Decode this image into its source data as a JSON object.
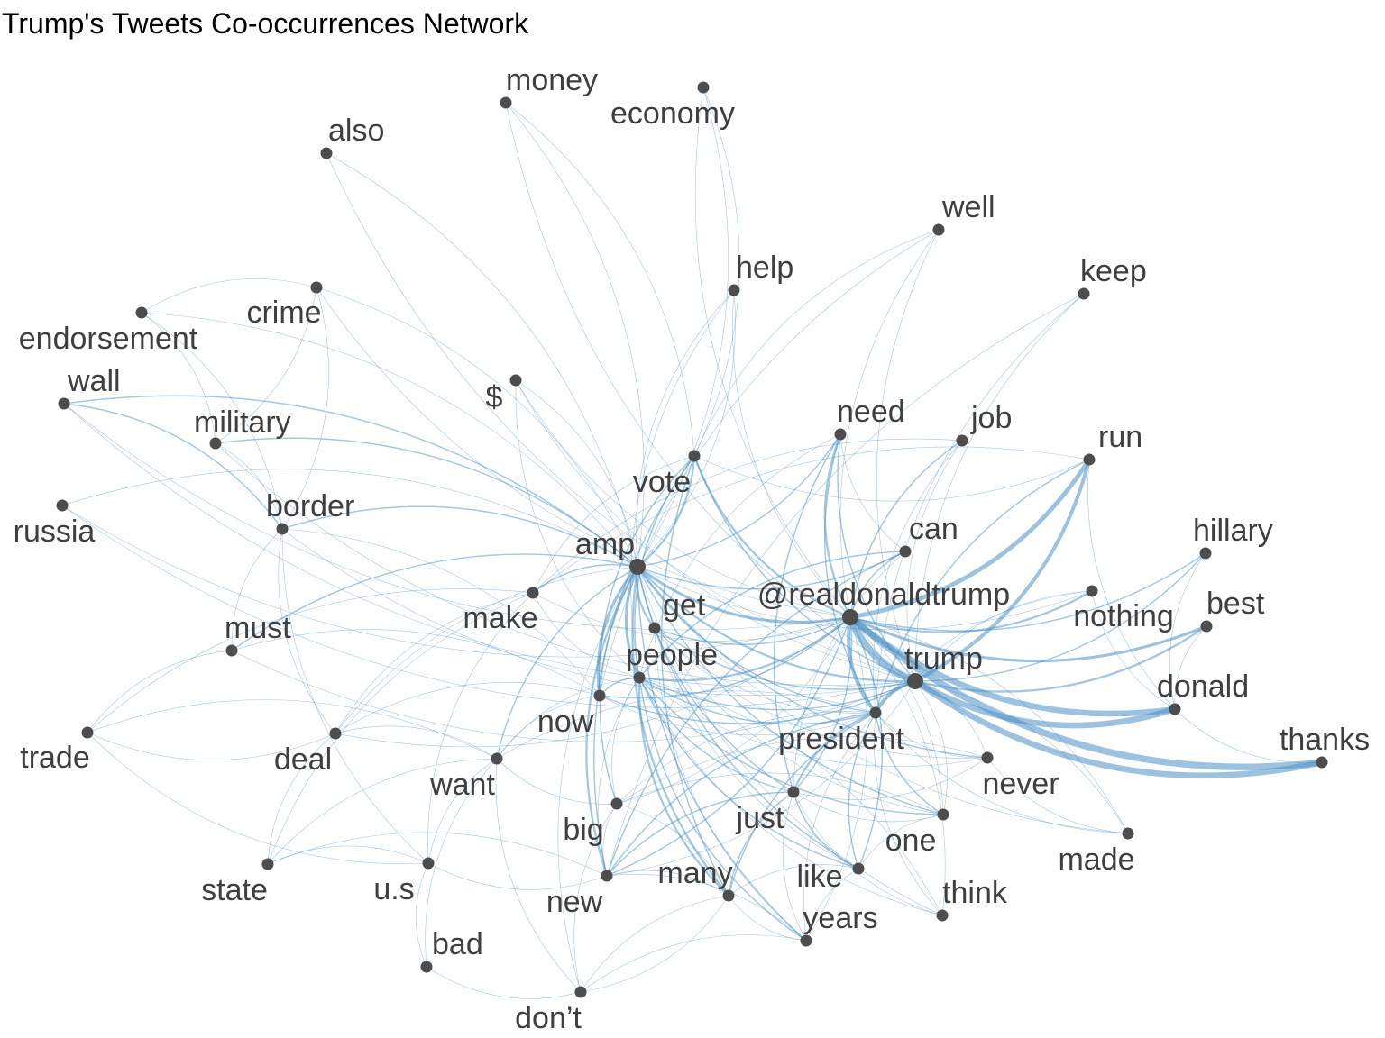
{
  "title": "Trump's Tweets Co-occurrences Network",
  "colors": {
    "edge": "#4a8fc6",
    "node": "#4d4d4d",
    "label": "#3f3f3f",
    "background": "#ffffff"
  },
  "nodes": [
    {
      "id": "money",
      "label": "money"
    },
    {
      "id": "economy",
      "label": "economy"
    },
    {
      "id": "also",
      "label": "also"
    },
    {
      "id": "well",
      "label": "well"
    },
    {
      "id": "help",
      "label": "help"
    },
    {
      "id": "keep",
      "label": "keep"
    },
    {
      "id": "crime",
      "label": "crime"
    },
    {
      "id": "endorsement",
      "label": "endorsement"
    },
    {
      "id": "wall",
      "label": "wall"
    },
    {
      "id": "dollar",
      "label": "$"
    },
    {
      "id": "military",
      "label": "military"
    },
    {
      "id": "need",
      "label": "need"
    },
    {
      "id": "job",
      "label": "job"
    },
    {
      "id": "run",
      "label": "run"
    },
    {
      "id": "vote",
      "label": "vote"
    },
    {
      "id": "russia",
      "label": "russia"
    },
    {
      "id": "border",
      "label": "border"
    },
    {
      "id": "hillary",
      "label": "hillary"
    },
    {
      "id": "can",
      "label": "can"
    },
    {
      "id": "amp",
      "label": "amp"
    },
    {
      "id": "realdonaldtrump",
      "label": "@realdonaldtrump"
    },
    {
      "id": "nothing",
      "label": "nothing"
    },
    {
      "id": "best",
      "label": "best"
    },
    {
      "id": "make",
      "label": "make"
    },
    {
      "id": "get",
      "label": "get"
    },
    {
      "id": "must",
      "label": "must"
    },
    {
      "id": "people",
      "label": "people"
    },
    {
      "id": "trump",
      "label": "trump"
    },
    {
      "id": "donald",
      "label": "donald"
    },
    {
      "id": "now",
      "label": "now"
    },
    {
      "id": "president",
      "label": "president"
    },
    {
      "id": "thanks",
      "label": "thanks"
    },
    {
      "id": "trade",
      "label": "trade"
    },
    {
      "id": "deal",
      "label": "deal"
    },
    {
      "id": "want",
      "label": "want"
    },
    {
      "id": "never",
      "label": "never"
    },
    {
      "id": "just",
      "label": "just"
    },
    {
      "id": "big",
      "label": "big"
    },
    {
      "id": "one",
      "label": "one"
    },
    {
      "id": "made",
      "label": "made"
    },
    {
      "id": "state",
      "label": "state"
    },
    {
      "id": "us",
      "label": "u.s"
    },
    {
      "id": "new",
      "label": "new"
    },
    {
      "id": "many",
      "label": "many"
    },
    {
      "id": "like",
      "label": "like"
    },
    {
      "id": "think",
      "label": "think"
    },
    {
      "id": "years",
      "label": "years"
    },
    {
      "id": "bad",
      "label": "bad"
    },
    {
      "id": "dont",
      "label": "don’t"
    }
  ],
  "edges": [
    [
      "realdonaldtrump",
      "trump",
      10
    ],
    [
      "realdonaldtrump",
      "thanks",
      9
    ],
    [
      "trump",
      "thanks",
      8
    ],
    [
      "realdonaldtrump",
      "donald",
      8
    ],
    [
      "trump",
      "donald",
      8
    ],
    [
      "realdonaldtrump",
      "run",
      6
    ],
    [
      "trump",
      "run",
      5
    ],
    [
      "realdonaldtrump",
      "president",
      5
    ],
    [
      "trump",
      "president",
      5
    ],
    [
      "amp",
      "realdonaldtrump",
      4
    ],
    [
      "realdonaldtrump",
      "best",
      4
    ],
    [
      "trump",
      "best",
      3
    ],
    [
      "realdonaldtrump",
      "nothing",
      3
    ],
    [
      "realdonaldtrump",
      "hillary",
      2
    ],
    [
      "trump",
      "hillary",
      2
    ],
    [
      "amp",
      "people",
      4
    ],
    [
      "amp",
      "now",
      4
    ],
    [
      "amp",
      "many",
      3
    ],
    [
      "amp",
      "new",
      3
    ],
    [
      "amp",
      "vote",
      3
    ],
    [
      "amp",
      "get",
      3
    ],
    [
      "amp",
      "trump",
      3
    ],
    [
      "amp",
      "president",
      2
    ],
    [
      "amp",
      "military",
      2
    ],
    [
      "amp",
      "border",
      2
    ],
    [
      "amp",
      "wall",
      2
    ],
    [
      "amp",
      "must",
      2
    ],
    [
      "amp",
      "make",
      2
    ],
    [
      "amp",
      "just",
      2
    ],
    [
      "amp",
      "big",
      2
    ],
    [
      "amp",
      "years",
      2
    ],
    [
      "amp",
      "dollar",
      1
    ],
    [
      "amp",
      "crime",
      1
    ],
    [
      "amp",
      "endorsement",
      1
    ],
    [
      "amp",
      "money",
      1
    ],
    [
      "amp",
      "economy",
      1
    ],
    [
      "amp",
      "help",
      1
    ],
    [
      "amp",
      "need",
      2
    ],
    [
      "amp",
      "can",
      2
    ],
    [
      "amp",
      "never",
      2
    ],
    [
      "amp",
      "one",
      2
    ],
    [
      "amp",
      "like",
      2
    ],
    [
      "amp",
      "think",
      1
    ],
    [
      "amp",
      "want",
      2
    ],
    [
      "amp",
      "deal",
      1
    ],
    [
      "amp",
      "russia",
      1
    ],
    [
      "amp",
      "made",
      1
    ],
    [
      "amp",
      "nothing",
      1
    ],
    [
      "amp",
      "also",
      1
    ],
    [
      "amp",
      "dont",
      1
    ],
    [
      "vote",
      "realdonaldtrump",
      3
    ],
    [
      "vote",
      "trump",
      2
    ],
    [
      "vote",
      "people",
      2
    ],
    [
      "vote",
      "many",
      2
    ],
    [
      "vote",
      "new",
      2
    ],
    [
      "vote",
      "now",
      2
    ],
    [
      "vote",
      "economy",
      1
    ],
    [
      "vote",
      "money",
      1
    ],
    [
      "vote",
      "run",
      1
    ],
    [
      "vote",
      "make",
      1
    ],
    [
      "need",
      "realdonaldtrump",
      3
    ],
    [
      "need",
      "president",
      2
    ],
    [
      "need",
      "trump",
      2
    ],
    [
      "need",
      "just",
      2
    ],
    [
      "need",
      "people",
      1
    ],
    [
      "need",
      "can",
      1
    ],
    [
      "can",
      "realdonaldtrump",
      2
    ],
    [
      "can",
      "people",
      2
    ],
    [
      "can",
      "new",
      2
    ],
    [
      "can",
      "just",
      1
    ],
    [
      "job",
      "realdonaldtrump",
      2
    ],
    [
      "job",
      "trump",
      1
    ],
    [
      "job",
      "president",
      1
    ],
    [
      "job",
      "make",
      1
    ],
    [
      "well",
      "realdonaldtrump",
      1
    ],
    [
      "well",
      "trump",
      1
    ],
    [
      "well",
      "vote",
      1
    ],
    [
      "well",
      "now",
      1
    ],
    [
      "keep",
      "trump",
      1
    ],
    [
      "keep",
      "president",
      1
    ],
    [
      "keep",
      "new",
      1
    ],
    [
      "help",
      "realdonaldtrump",
      1
    ],
    [
      "help",
      "people",
      1
    ],
    [
      "help",
      "amp",
      1
    ],
    [
      "run",
      "president",
      2
    ],
    [
      "run",
      "make",
      1
    ],
    [
      "run",
      "donald",
      1
    ],
    [
      "people",
      "realdonaldtrump",
      3
    ],
    [
      "people",
      "many",
      3
    ],
    [
      "people",
      "years",
      2
    ],
    [
      "people",
      "president",
      2
    ],
    [
      "people",
      "trump",
      2
    ],
    [
      "people",
      "like",
      2
    ],
    [
      "people",
      "one",
      2
    ],
    [
      "people",
      "think",
      1
    ],
    [
      "people",
      "now",
      2
    ],
    [
      "people",
      "new",
      1
    ],
    [
      "people",
      "want",
      1
    ],
    [
      "people",
      "big",
      1
    ],
    [
      "people",
      "just",
      2
    ],
    [
      "people",
      "never",
      1
    ],
    [
      "now",
      "realdonaldtrump",
      2
    ],
    [
      "now",
      "trump",
      2
    ],
    [
      "now",
      "president",
      1
    ],
    [
      "now",
      "want",
      1
    ],
    [
      "now",
      "border",
      1
    ],
    [
      "now",
      "must",
      1
    ],
    [
      "now",
      "deal",
      1
    ],
    [
      "get",
      "realdonaldtrump",
      2
    ],
    [
      "get",
      "trump",
      2
    ],
    [
      "get",
      "president",
      1
    ],
    [
      "get",
      "like",
      1
    ],
    [
      "get",
      "one",
      1
    ],
    [
      "get",
      "never",
      1
    ],
    [
      "get",
      "years",
      1
    ],
    [
      "president",
      "just",
      3
    ],
    [
      "president",
      "like",
      2
    ],
    [
      "president",
      "one",
      2
    ],
    [
      "president",
      "many",
      2
    ],
    [
      "president",
      "new",
      2
    ],
    [
      "president",
      "never",
      1
    ],
    [
      "president",
      "think",
      1
    ],
    [
      "president",
      "years",
      1
    ],
    [
      "president",
      "big",
      1
    ],
    [
      "president",
      "made",
      1
    ],
    [
      "president",
      "want",
      1
    ],
    [
      "just",
      "realdonaldtrump",
      2
    ],
    [
      "just",
      "many",
      2
    ],
    [
      "just",
      "new",
      2
    ],
    [
      "just",
      "like",
      2
    ],
    [
      "just",
      "years",
      1
    ],
    [
      "just",
      "think",
      1
    ],
    [
      "just",
      "never",
      1
    ],
    [
      "just",
      "one",
      1
    ],
    [
      "like",
      "realdonaldtrump",
      2
    ],
    [
      "like",
      "many",
      1
    ],
    [
      "like",
      "years",
      1
    ],
    [
      "one",
      "realdonaldtrump",
      1
    ],
    [
      "one",
      "like",
      1
    ],
    [
      "one",
      "big",
      1
    ],
    [
      "one",
      "trump",
      1
    ],
    [
      "never",
      "trump",
      1
    ],
    [
      "never",
      "made",
      1
    ],
    [
      "never",
      "big",
      1
    ],
    [
      "think",
      "realdonaldtrump",
      1
    ],
    [
      "think",
      "people",
      1
    ],
    [
      "many",
      "years",
      1
    ],
    [
      "many",
      "new",
      1
    ],
    [
      "many",
      "big",
      1
    ],
    [
      "many",
      "dont",
      1
    ],
    [
      "make",
      "realdonaldtrump",
      1
    ],
    [
      "make",
      "people",
      1
    ],
    [
      "make",
      "us",
      1
    ],
    [
      "make",
      "state",
      1
    ],
    [
      "make",
      "deal",
      1
    ],
    [
      "make",
      "trade",
      1
    ],
    [
      "want",
      "us",
      1
    ],
    [
      "want",
      "bad",
      1
    ],
    [
      "want",
      "state",
      1
    ],
    [
      "want",
      "dont",
      1
    ],
    [
      "want",
      "trade",
      1
    ],
    [
      "want",
      "deal",
      1
    ],
    [
      "want",
      "big",
      1
    ],
    [
      "border",
      "wall",
      2
    ],
    [
      "border",
      "crime",
      1
    ],
    [
      "border",
      "military",
      1
    ],
    [
      "border",
      "endorsement",
      1
    ],
    [
      "border",
      "must",
      1
    ],
    [
      "border",
      "trump",
      1
    ],
    [
      "border",
      "deal",
      1
    ],
    [
      "border",
      "us",
      1
    ],
    [
      "military",
      "endorsement",
      1
    ],
    [
      "military",
      "crime",
      1
    ],
    [
      "military",
      "trump",
      1
    ],
    [
      "crime",
      "endorsement",
      1
    ],
    [
      "crime",
      "realdonaldtrump",
      1
    ],
    [
      "wall",
      "trump",
      1
    ],
    [
      "wall",
      "realdonaldtrump",
      1
    ],
    [
      "dollar",
      "trump",
      1
    ],
    [
      "dollar",
      "people",
      1
    ],
    [
      "dollar",
      "realdonaldtrump",
      1
    ],
    [
      "must",
      "trump",
      1
    ],
    [
      "must",
      "trade",
      1
    ],
    [
      "trade",
      "deal",
      1
    ],
    [
      "trade",
      "us",
      1
    ],
    [
      "deal",
      "state",
      1
    ],
    [
      "deal",
      "realdonaldtrump",
      1
    ],
    [
      "us",
      "state",
      1
    ],
    [
      "us",
      "new",
      1
    ],
    [
      "us",
      "bad",
      1
    ],
    [
      "big",
      "new",
      1
    ],
    [
      "big",
      "dont",
      1
    ],
    [
      "big",
      "realdonaldtrump",
      1
    ],
    [
      "years",
      "new",
      1
    ],
    [
      "years",
      "dont",
      1
    ],
    [
      "years",
      "realdonaldtrump",
      1
    ],
    [
      "new",
      "realdonaldtrump",
      2
    ],
    [
      "new",
      "trump",
      1
    ],
    [
      "new",
      "state",
      1
    ],
    [
      "made",
      "realdonaldtrump",
      1
    ],
    [
      "made",
      "trump",
      1
    ],
    [
      "hillary",
      "donald",
      1
    ],
    [
      "best",
      "donald",
      1
    ],
    [
      "donald",
      "thanks",
      1
    ],
    [
      "nothing",
      "donald",
      1
    ],
    [
      "nothing",
      "trump",
      1
    ],
    [
      "nothing",
      "president",
      1
    ],
    [
      "economy",
      "realdonaldtrump",
      1
    ],
    [
      "money",
      "trump",
      1
    ],
    [
      "also",
      "trump",
      1
    ],
    [
      "russia",
      "trump",
      1
    ],
    [
      "russia",
      "realdonaldtrump",
      1
    ],
    [
      "bad",
      "dont",
      1
    ],
    [
      "dont",
      "many",
      1
    ]
  ]
}
